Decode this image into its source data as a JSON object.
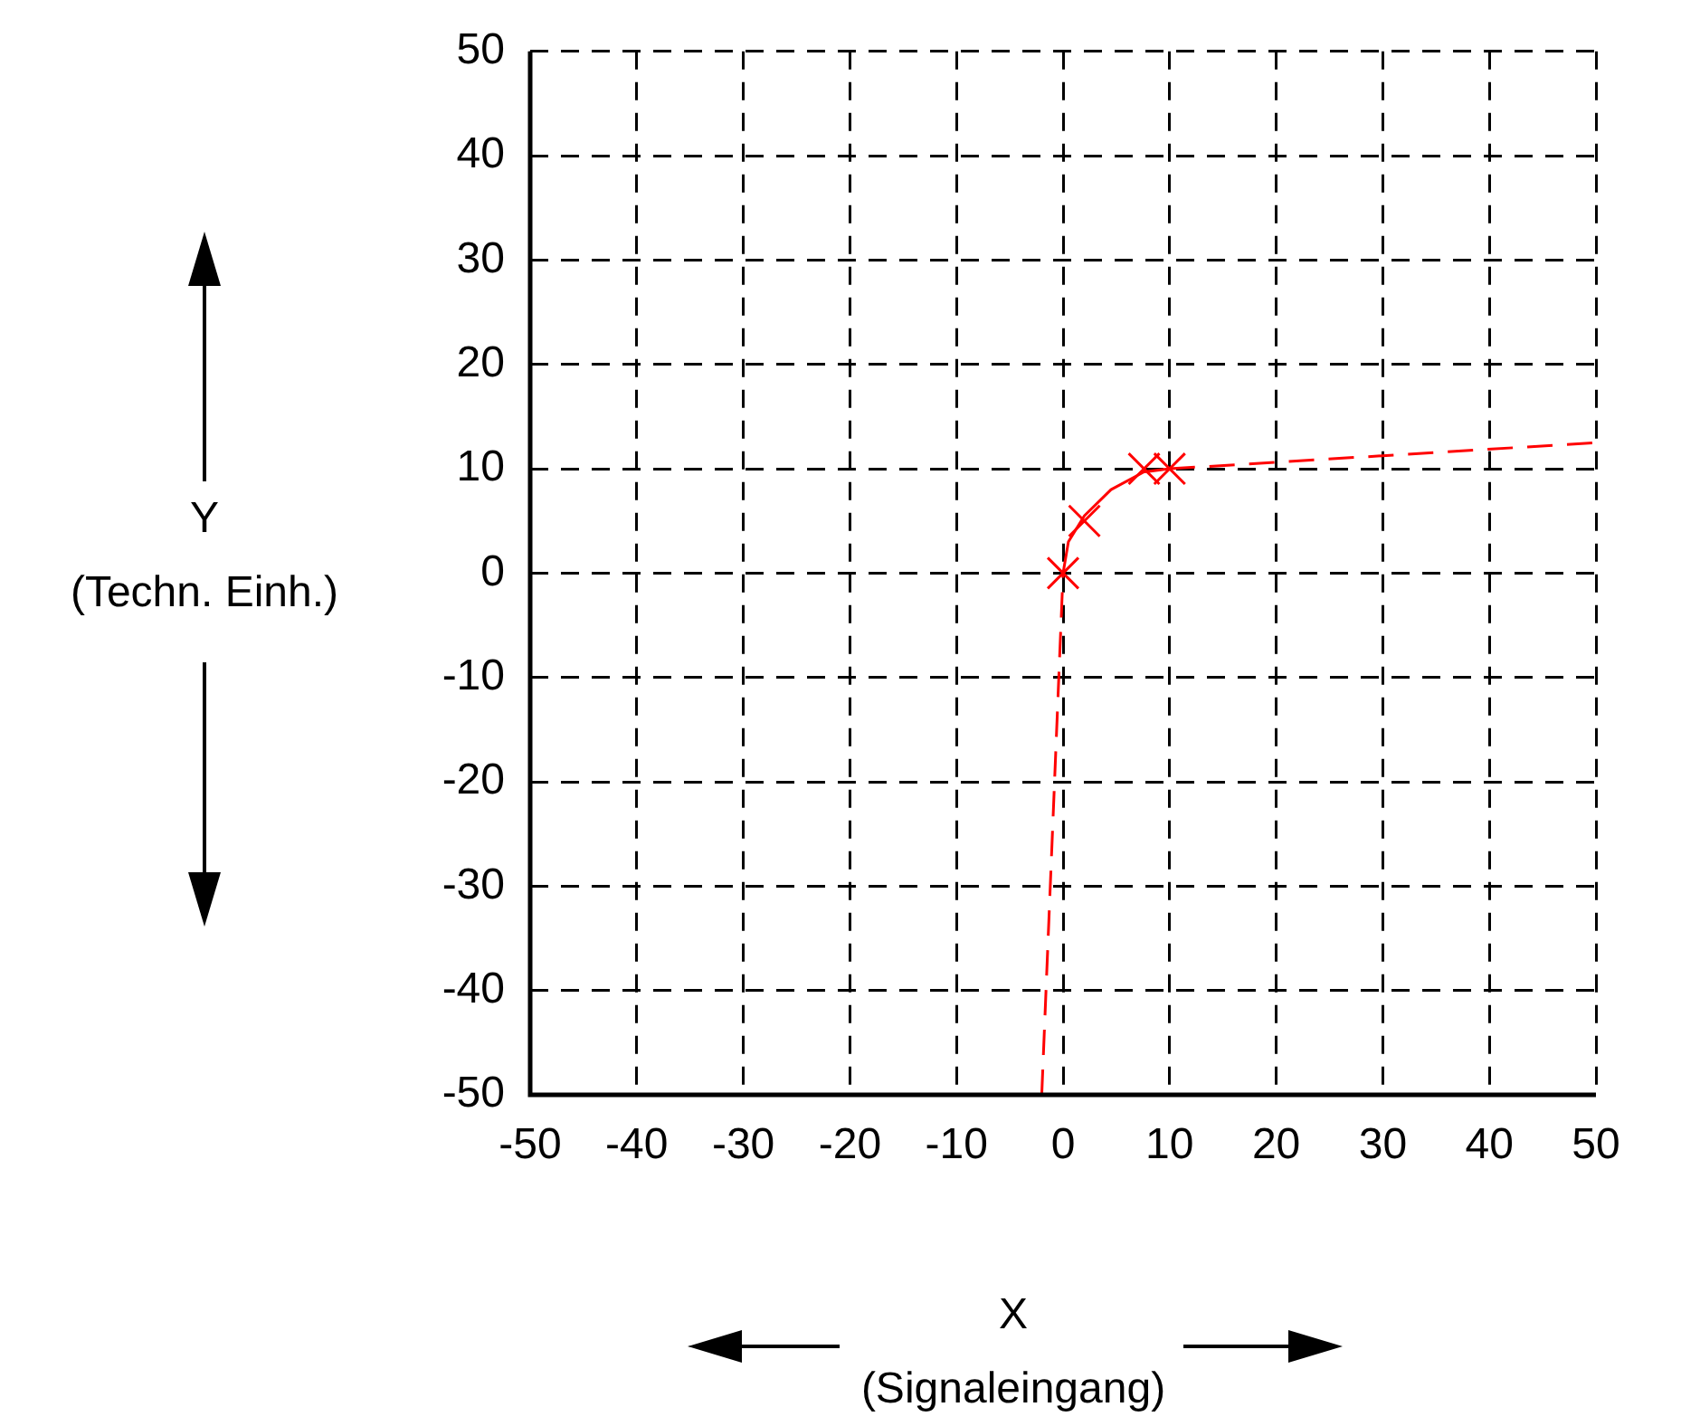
{
  "chart_data": {
    "type": "line",
    "xlabel": "X\n(Signaleingang)",
    "ylabel": "Y\n(Techn. Einh.)",
    "xlim": [
      -50,
      50
    ],
    "xticks": [
      -50,
      -40,
      -30,
      -20,
      -10,
      0,
      10,
      20,
      30,
      40,
      50
    ],
    "ylim": [
      -50,
      50
    ],
    "yticks": [
      -50,
      -40,
      -30,
      -20,
      -10,
      0,
      10,
      20,
      30,
      40,
      50
    ],
    "grid": true,
    "legend": false,
    "marker": "none",
    "series": [
      {
        "x": [
          -2,
          0
        ],
        "values": [
          -50,
          0
        ],
        "color": "#ff0000",
        "line_style": "dashed"
      },
      {
        "x": [
          0,
          0.5,
          2,
          4.5,
          7.6,
          10
        ],
        "values": [
          0,
          3,
          5.5,
          8,
          9.7,
          10
        ],
        "color": "#ff0000",
        "line_style": "solid"
      },
      {
        "x": [
          10,
          50
        ],
        "values": [
          10,
          12.5
        ],
        "color": "#ff0000",
        "line_style": "dashed"
      },
      {
        "type": "scatter",
        "x": [
          0,
          2,
          7.6,
          10
        ],
        "values": [
          0,
          5,
          10,
          10
        ],
        "color": "#ff0000",
        "marker": "cross"
      }
    ]
  }
}
